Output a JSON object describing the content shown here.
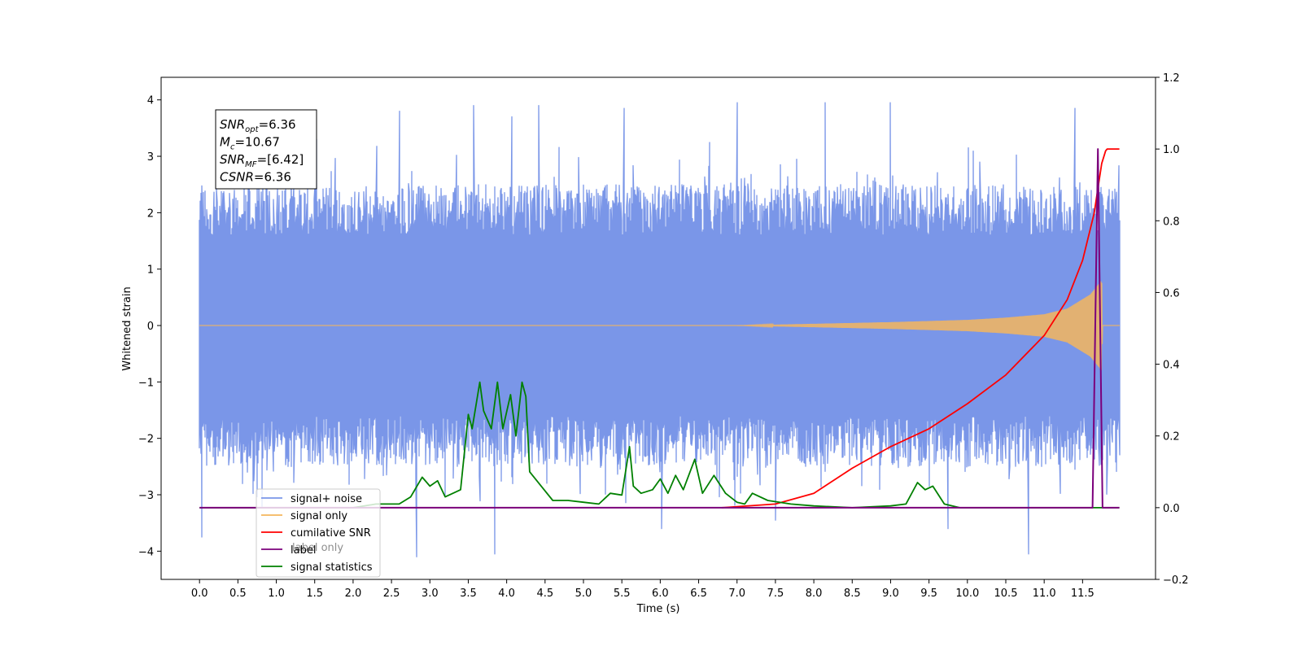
{
  "chart_data": {
    "type": "line",
    "title": "",
    "xlabel": "Time (s)",
    "ylabel": "Whitened strain",
    "y2label": "",
    "xlim": [
      -0.5,
      12.45
    ],
    "ylim": [
      -4.5,
      4.4
    ],
    "y2lim": [
      -0.2,
      1.2
    ],
    "x_ticks": [
      0.0,
      0.5,
      1.0,
      1.5,
      2.0,
      2.5,
      3.0,
      3.5,
      4.0,
      4.5,
      5.0,
      5.5,
      6.0,
      6.5,
      7.0,
      7.5,
      8.0,
      8.5,
      9.0,
      9.5,
      10.0,
      10.5,
      11.0,
      11.5
    ],
    "x_tick_labels": [
      "0.0",
      "0.5",
      "1.0",
      "1.5",
      "2.0",
      "2.5",
      "3.0",
      "3.5",
      "4.0",
      "4.5",
      "5.0",
      "5.5",
      "6.0",
      "6.5",
      "7.0",
      "7.5",
      "8.0",
      "8.5",
      "9.0",
      "9.5",
      "10.0",
      "10.5",
      "11.0",
      "11.5"
    ],
    "y_ticks": [
      -4,
      -3,
      -2,
      -1,
      0,
      1,
      2,
      3,
      4
    ],
    "y_tick_labels": [
      "−4",
      "−3",
      "−2",
      "−1",
      "0",
      "1",
      "2",
      "3",
      "4"
    ],
    "y2_ticks": [
      -0.2,
      0.0,
      0.2,
      0.4,
      0.6,
      0.8,
      1.0,
      1.2
    ],
    "y2_tick_labels": [
      "−0.2",
      "0.0",
      "0.2",
      "0.4",
      "0.6",
      "0.8",
      "1.0",
      "1.2"
    ],
    "grid": false,
    "legend_position": "lower-left",
    "annotation": {
      "lines": [
        {
          "base": "SNR",
          "sub": "opt",
          "value": "=6.36"
        },
        {
          "base": "M",
          "sub": "c",
          "value": "=10.67"
        },
        {
          "base": "SNR",
          "sub": "MF",
          "value": "=[6.42]"
        },
        {
          "base": "CSNR",
          "sub": "",
          "value": "=6.36"
        }
      ]
    },
    "series": [
      {
        "name": "signal+ noise",
        "axis": "left",
        "color": "#7a96e8",
        "kind": "noise",
        "x_range": [
          0.0,
          11.98
        ],
        "peaks_x": [
          0.03,
          1.2,
          2.6,
          2.83,
          3.57,
          3.85,
          4.07,
          4.42,
          5.53,
          6.02,
          7.0,
          7.5,
          8.15,
          9.0,
          9.75,
          10.8,
          11.4
        ],
        "peaks_y": [
          -3.75,
          3.6,
          3.8,
          -4.1,
          3.9,
          -4.05,
          3.7,
          3.9,
          3.85,
          -3.6,
          3.95,
          -3.45,
          3.95,
          3.95,
          -3.6,
          -4.05,
          3.85
        ]
      },
      {
        "name": "signal only",
        "axis": "left",
        "color": "#f5b65d",
        "kind": "chirp",
        "x_range": [
          0.0,
          11.98
        ],
        "envelope_x": [
          0.0,
          7.0,
          8.0,
          9.0,
          10.0,
          10.5,
          11.0,
          11.3,
          11.6,
          11.75,
          11.76,
          11.98
        ],
        "envelope_y": [
          0.0,
          0.0,
          0.03,
          0.06,
          0.1,
          0.14,
          0.2,
          0.3,
          0.55,
          0.8,
          0.0,
          0.0
        ]
      },
      {
        "name": "cumilative SNR",
        "axis": "right",
        "color": "#ff0000",
        "x": [
          6.8,
          7.5,
          8.0,
          8.5,
          9.0,
          9.5,
          10.0,
          10.5,
          11.0,
          11.3,
          11.5,
          11.65,
          11.75,
          11.8,
          11.82,
          11.98
        ],
        "y": [
          0.0,
          0.01,
          0.04,
          0.11,
          0.17,
          0.22,
          0.29,
          0.37,
          0.48,
          0.58,
          0.69,
          0.82,
          0.96,
          0.995,
          1.0,
          1.0
        ]
      },
      {
        "name": "label",
        "axis": "right",
        "color": "#7b007b",
        "x": [
          0.0,
          11.63,
          11.7,
          11.76,
          11.78,
          11.98
        ],
        "y": [
          0.0,
          0.0,
          1.0,
          0.0,
          0.0,
          0.0
        ]
      },
      {
        "name": "signal statistics",
        "axis": "right",
        "color": "#008000",
        "x": [
          0.0,
          2.0,
          2.3,
          2.6,
          2.75,
          2.9,
          3.0,
          3.1,
          3.2,
          3.3,
          3.4,
          3.5,
          3.55,
          3.65,
          3.7,
          3.8,
          3.88,
          3.95,
          4.05,
          4.12,
          4.2,
          4.25,
          4.3,
          4.45,
          4.6,
          4.8,
          5.0,
          5.2,
          5.35,
          5.5,
          5.6,
          5.65,
          5.75,
          5.9,
          6.0,
          6.1,
          6.2,
          6.3,
          6.45,
          6.55,
          6.7,
          6.85,
          7.0,
          7.1,
          7.2,
          7.4,
          7.7,
          8.0,
          8.5,
          9.0,
          9.2,
          9.35,
          9.45,
          9.55,
          9.7,
          9.9,
          11.0,
          11.98
        ],
        "y": [
          0.0,
          0.0,
          0.01,
          0.01,
          0.03,
          0.085,
          0.06,
          0.075,
          0.03,
          0.04,
          0.05,
          0.26,
          0.22,
          0.35,
          0.27,
          0.22,
          0.35,
          0.22,
          0.315,
          0.2,
          0.35,
          0.31,
          0.1,
          0.06,
          0.02,
          0.02,
          0.015,
          0.01,
          0.04,
          0.035,
          0.17,
          0.06,
          0.04,
          0.05,
          0.08,
          0.04,
          0.09,
          0.05,
          0.135,
          0.04,
          0.09,
          0.04,
          0.015,
          0.01,
          0.04,
          0.02,
          0.01,
          0.005,
          0.0,
          0.005,
          0.01,
          0.07,
          0.05,
          0.06,
          0.01,
          0.0,
          0.0,
          0.0
        ]
      }
    ],
    "legend_entries": [
      "signal+ noise",
      "signal only",
      "cumilative SNR",
      "label",
      "signal statistics"
    ],
    "obscured_legend_text": "label only"
  }
}
